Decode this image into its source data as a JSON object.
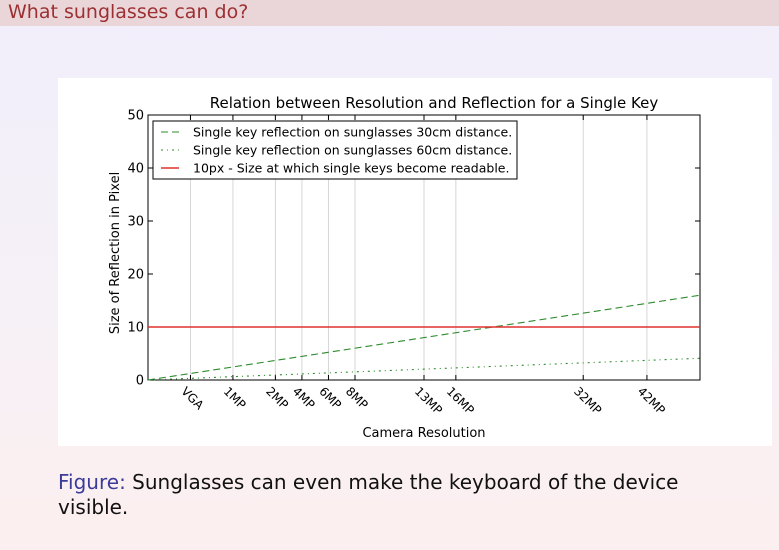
{
  "header": {
    "title": "What sunglasses can do?"
  },
  "caption": {
    "label": "Figure:",
    "text": "Sunglasses can even make the keyboard of the device visible."
  },
  "chart_data": {
    "type": "line",
    "title": "Relation between Resolution and Reflection for a Single Key",
    "xlabel": "Camera Resolution",
    "ylabel": "Size of Reflection in Pixel",
    "xlim": [
      0,
      52
    ],
    "ylim": [
      0,
      50
    ],
    "yticks": [
      0,
      10,
      20,
      30,
      40,
      50
    ],
    "xticks": [
      {
        "label": "VGA",
        "x": 4
      },
      {
        "label": "1MP",
        "x": 8
      },
      {
        "label": "2MP",
        "x": 12
      },
      {
        "label": "4MP",
        "x": 14.5
      },
      {
        "label": "6MP",
        "x": 17
      },
      {
        "label": "8MP",
        "x": 19.5
      },
      {
        "label": "13MP",
        "x": 26
      },
      {
        "label": "16MP",
        "x": 29
      },
      {
        "label": "32MP",
        "x": 41
      },
      {
        "label": "42MP",
        "x": 47
      }
    ],
    "grid": "vertical",
    "legend_position": "top-left",
    "series": [
      {
        "name": "Single key reflection on sunglasses 30cm distance.",
        "style": "dashed",
        "color": "#2e8b2e",
        "x": [
          0,
          52
        ],
        "y": [
          0,
          16
        ]
      },
      {
        "name": "Single key reflection on sunglasses 60cm distance.",
        "style": "dashdot",
        "color": "#2e8b2e",
        "x": [
          0,
          52
        ],
        "y": [
          0,
          4.1
        ]
      },
      {
        "name": "10px - Size at which single keys become readable.",
        "style": "solid",
        "color": "#e0312e",
        "x": [
          0,
          52
        ],
        "y": [
          10,
          10
        ]
      }
    ]
  }
}
